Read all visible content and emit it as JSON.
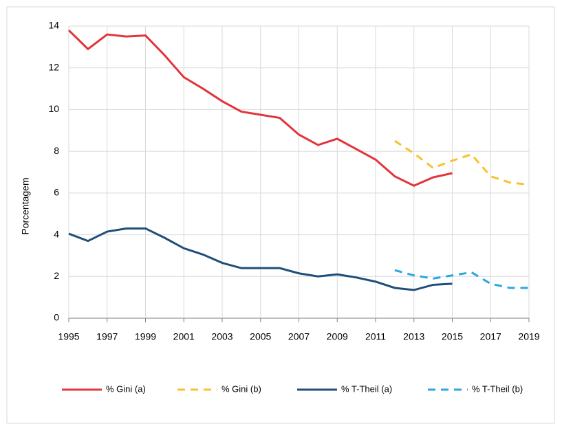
{
  "chart_data": {
    "type": "line",
    "y_label": "Porcentagem",
    "x": [
      1995,
      1996,
      1997,
      1998,
      1999,
      2000,
      2001,
      2002,
      2003,
      2004,
      2005,
      2006,
      2007,
      2008,
      2009,
      2010,
      2011,
      2012,
      2013,
      2014,
      2015,
      2016,
      2017,
      2018,
      2019
    ],
    "xlim": [
      1995,
      2019
    ],
    "xticks": [
      1995,
      1997,
      1999,
      2001,
      2003,
      2005,
      2007,
      2009,
      2011,
      2013,
      2015,
      2017,
      2019
    ],
    "ylim": [
      0,
      14
    ],
    "yticks": [
      0,
      2,
      4,
      6,
      8,
      10,
      12,
      14
    ],
    "grid": true,
    "legend": "bottom",
    "series": [
      {
        "name": "% Gini (a)",
        "color": "#e3343c",
        "dashed": false,
        "values": [
          13.8,
          12.9,
          13.6,
          13.5,
          13.55,
          12.6,
          11.55,
          11.0,
          10.4,
          9.9,
          9.75,
          9.6,
          8.8,
          8.3,
          8.6,
          8.1,
          7.6,
          6.8,
          6.35,
          6.75,
          6.95,
          null,
          null,
          null,
          null
        ]
      },
      {
        "name": "% Gini (b)",
        "color": "#fbc02d",
        "dashed": true,
        "values": [
          null,
          null,
          null,
          null,
          null,
          null,
          null,
          null,
          null,
          null,
          null,
          null,
          null,
          null,
          null,
          null,
          null,
          8.5,
          7.9,
          7.2,
          7.55,
          7.85,
          6.8,
          6.5,
          6.4
        ]
      },
      {
        "name": "% T-Theil (a)",
        "color": "#1f4e79",
        "dashed": false,
        "values": [
          4.05,
          3.7,
          4.15,
          4.3,
          4.3,
          3.85,
          3.35,
          3.05,
          2.65,
          2.4,
          2.4,
          2.4,
          2.15,
          2.0,
          2.1,
          1.95,
          1.75,
          1.45,
          1.35,
          1.6,
          1.65,
          null,
          null,
          null,
          null
        ]
      },
      {
        "name": "% T-Theil (b)",
        "color": "#29a8e0",
        "dashed": true,
        "values": [
          null,
          null,
          null,
          null,
          null,
          null,
          null,
          null,
          null,
          null,
          null,
          null,
          null,
          null,
          null,
          null,
          null,
          2.3,
          2.05,
          1.9,
          2.05,
          2.2,
          1.65,
          1.45,
          1.45
        ]
      }
    ]
  }
}
